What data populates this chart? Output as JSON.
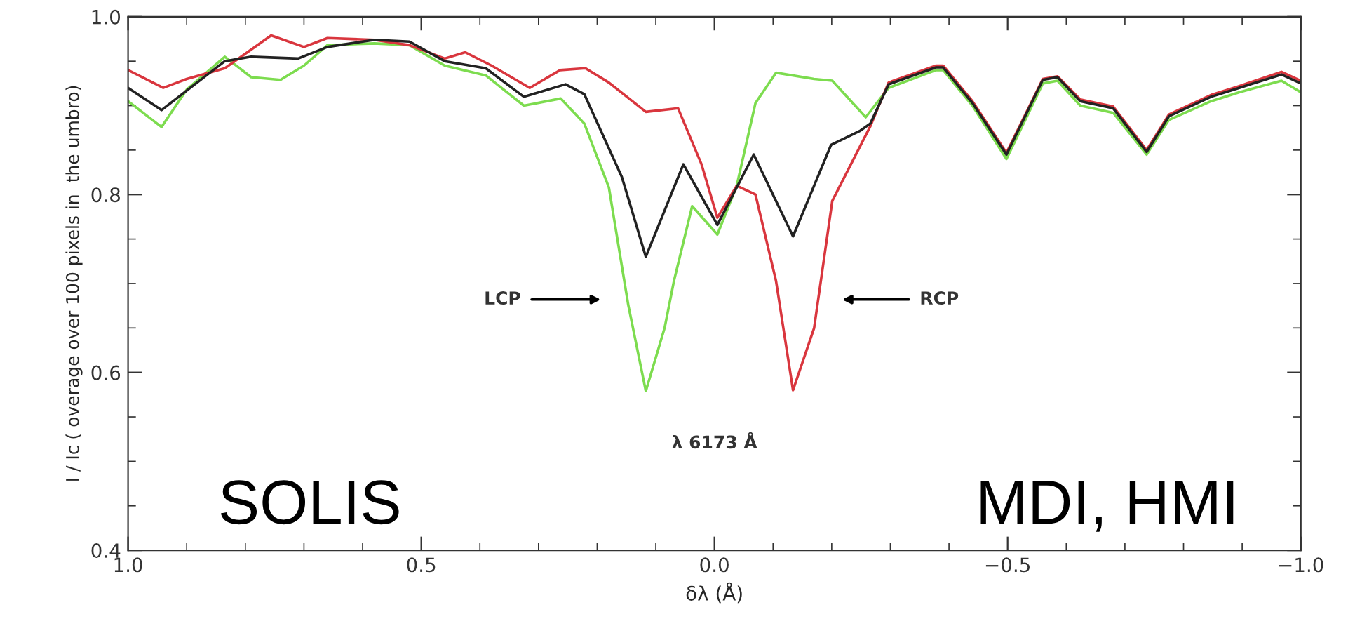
{
  "chart_data": {
    "type": "line",
    "xlabel": "δλ (Å)",
    "ylabel": "I / Ic ( overage over 100 pixels in  the umbro)",
    "xlim": [
      1.0,
      -1.0
    ],
    "ylim": [
      0.4,
      1.0
    ],
    "xticks": [
      {
        "value": 1,
        "label": "1.0"
      },
      0.5,
      {
        "value": 0,
        "label": "0.0"
      },
      {
        "value": -0.5,
        "label": "−0.5"
      },
      {
        "value": -1.0,
        "label": "−1.0"
      }
    ],
    "yticks": [
      0.4,
      0.6,
      0.8,
      {
        "value": 1,
        "label": "1.0"
      }
    ],
    "grid": false,
    "marker": "none",
    "line_style": "solid",
    "series": [
      {
        "color": "#7ddc4f",
        "x": [
          1.0,
          0.943,
          0.9,
          0.835,
          0.79,
          0.74,
          0.7,
          0.66,
          0.58,
          0.52,
          0.46,
          0.39,
          0.325,
          0.262,
          0.222,
          0.18,
          0.147,
          0.117,
          0.085,
          0.069,
          0.038,
          -0.005,
          -0.038,
          -0.07,
          -0.105,
          -0.17,
          -0.201,
          -0.258,
          -0.297,
          -0.378,
          -0.39,
          -0.44,
          -0.498,
          -0.56,
          -0.585,
          -0.624,
          -0.68,
          -0.737,
          -0.775,
          -0.847,
          -0.895,
          -0.967,
          -1.0
        ],
        "values": [
          0.905,
          0.876,
          0.918,
          0.955,
          0.932,
          0.929,
          0.945,
          0.968,
          0.97,
          0.968,
          0.945,
          0.934,
          0.9,
          0.908,
          0.88,
          0.808,
          0.676,
          0.579,
          0.65,
          0.703,
          0.787,
          0.755,
          0.81,
          0.903,
          0.937,
          0.93,
          0.928,
          0.887,
          0.92,
          0.94,
          0.94,
          0.9,
          0.84,
          0.925,
          0.928,
          0.9,
          0.892,
          0.845,
          0.884,
          0.905,
          0.915,
          0.928,
          0.915
        ]
      },
      {
        "color": "#d9363e",
        "x": [
          1.0,
          0.94,
          0.9,
          0.835,
          0.756,
          0.7,
          0.66,
          0.58,
          0.52,
          0.46,
          0.425,
          0.38,
          0.315,
          0.263,
          0.22,
          0.18,
          0.117,
          0.062,
          0.022,
          -0.005,
          -0.038,
          -0.07,
          -0.105,
          -0.134,
          -0.17,
          -0.201,
          -0.266,
          -0.297,
          -0.378,
          -0.39,
          -0.44,
          -0.498,
          -0.56,
          -0.585,
          -0.624,
          -0.68,
          -0.737,
          -0.775,
          -0.847,
          -0.895,
          -0.967,
          -1.0
        ],
        "values": [
          0.94,
          0.92,
          0.93,
          0.942,
          0.979,
          0.966,
          0.976,
          0.974,
          0.968,
          0.953,
          0.96,
          0.945,
          0.92,
          0.94,
          0.942,
          0.926,
          0.893,
          0.897,
          0.834,
          0.774,
          0.81,
          0.8,
          0.703,
          0.58,
          0.65,
          0.793,
          0.877,
          0.926,
          0.945,
          0.945,
          0.905,
          0.847,
          0.93,
          0.933,
          0.907,
          0.899,
          0.85,
          0.89,
          0.912,
          0.922,
          0.938,
          0.928
        ]
      },
      {
        "color": "#222222",
        "x": [
          1.0,
          0.943,
          0.835,
          0.79,
          0.71,
          0.66,
          0.58,
          0.52,
          0.46,
          0.39,
          0.325,
          0.254,
          0.222,
          0.158,
          0.117,
          0.053,
          -0.005,
          -0.067,
          -0.134,
          -0.199,
          -0.249,
          -0.266,
          -0.297,
          -0.378,
          -0.39,
          -0.44,
          -0.498,
          -0.56,
          -0.585,
          -0.624,
          -0.68,
          -0.737,
          -0.775,
          -0.847,
          -0.895,
          -0.967,
          -1.0
        ],
        "values": [
          0.92,
          0.895,
          0.95,
          0.955,
          0.953,
          0.966,
          0.974,
          0.972,
          0.95,
          0.942,
          0.91,
          0.924,
          0.913,
          0.82,
          0.73,
          0.834,
          0.766,
          0.845,
          0.753,
          0.856,
          0.872,
          0.88,
          0.924,
          0.943,
          0.943,
          0.903,
          0.845,
          0.929,
          0.932,
          0.905,
          0.897,
          0.848,
          0.888,
          0.91,
          0.92,
          0.935,
          0.925
        ]
      }
    ],
    "annotations": [
      "LCP",
      "RCP",
      "λ 6173 Å",
      "SOLIS",
      "MDI, HMI"
    ]
  }
}
